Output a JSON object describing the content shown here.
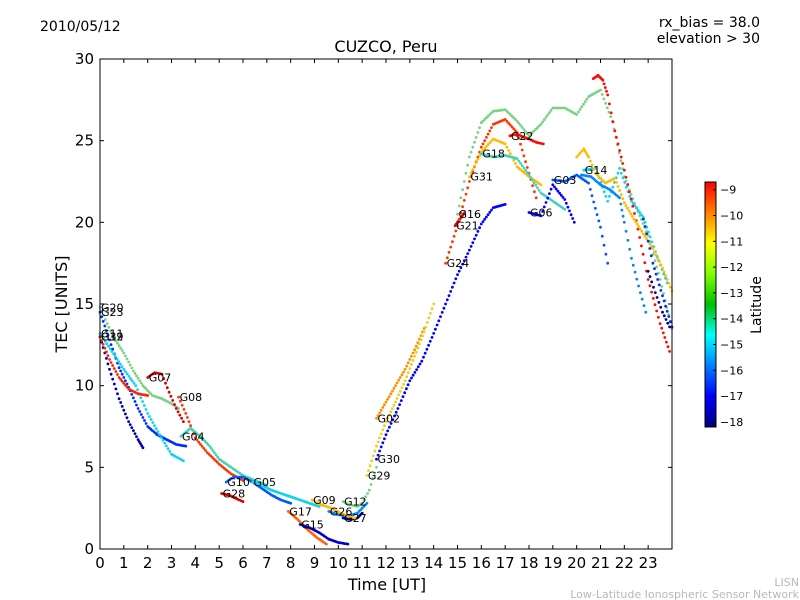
{
  "header": {
    "date": "2010/05/12",
    "rx_bias": "rx_bias = 38.0",
    "elevation": "elevation > 30"
  },
  "credit": {
    "line1": "LISN",
    "line2": "Low-Latitude Ionospheric Sensor Network"
  },
  "chart_data": {
    "type": "scatter",
    "title": "CUZCO, Peru",
    "xlabel": "Time [UT]",
    "ylabel": "TEC [UNITS]",
    "xlim": [
      0,
      24
    ],
    "ylim": [
      0,
      30
    ],
    "xticks": [
      "0",
      "1",
      "2",
      "3",
      "4",
      "5",
      "6",
      "7",
      "8",
      "9",
      "10",
      "11",
      "12",
      "13",
      "14",
      "15",
      "16",
      "17",
      "18",
      "19",
      "20",
      "21",
      "22",
      "23"
    ],
    "yticks": [
      "0",
      "5",
      "10",
      "15",
      "20",
      "25",
      "30"
    ],
    "grid": false,
    "colorbar": {
      "label": "Latitude",
      "min": -18.2,
      "max": -8.7,
      "ticks": [
        "−9",
        "−10",
        "−11",
        "−12",
        "−13",
        "−14",
        "−15",
        "−16",
        "−17",
        "−18"
      ],
      "tick_values": [
        -9,
        -10,
        -11,
        -12,
        -13,
        -14,
        -15,
        -16,
        -17,
        -18
      ]
    },
    "series": [
      {
        "name": "G20",
        "lat": -13.5,
        "x": [
          0,
          0.3,
          0.6,
          1.0,
          1.4,
          1.8,
          2.2,
          2.6,
          3.0,
          3.3
        ],
        "y": [
          14.8,
          13.8,
          12.9,
          12.0,
          10.9,
          10.0,
          9.4,
          9.2,
          8.9,
          8.6
        ]
      },
      {
        "name": "G23",
        "lat": -16.5,
        "x": [
          0,
          0.4,
          0.8,
          1.2,
          1.6,
          2.0,
          2.4,
          2.8,
          3.2,
          3.6
        ],
        "y": [
          14.5,
          12.8,
          11.1,
          9.9,
          8.6,
          7.5,
          7.0,
          6.7,
          6.4,
          6.3
        ]
      },
      {
        "name": "G19",
        "lat": -17.8,
        "x": [
          0,
          0.4,
          0.8,
          1.2,
          1.6,
          1.8
        ],
        "y": [
          13.0,
          11.0,
          9.2,
          7.8,
          6.7,
          6.2
        ]
      },
      {
        "name": "G11",
        "lat": -14.5,
        "x": [
          0,
          0.5,
          1.0,
          1.5,
          2.0,
          2.5,
          3.0,
          3.5
        ],
        "y": [
          13.2,
          12.1,
          11.0,
          10.0,
          8.3,
          7.0,
          5.8,
          5.4
        ]
      },
      {
        "name": "G32",
        "lat": -10.3,
        "x": [
          0,
          0.4,
          0.8,
          1.2,
          1.6,
          2.0
        ],
        "y": [
          13.0,
          11.6,
          10.5,
          9.8,
          9.5,
          9.4
        ]
      },
      {
        "name": "G07",
        "lat": -9.5,
        "x": [
          2.0,
          2.3,
          2.6,
          2.9,
          3.2,
          3.5
        ],
        "y": [
          10.5,
          10.8,
          10.7,
          9.6,
          8.6,
          7.8
        ]
      },
      {
        "name": "G08",
        "lat": -10.5,
        "x": [
          3.3,
          3.6,
          4.0,
          4.5,
          5.0,
          5.5,
          6.0
        ],
        "y": [
          9.3,
          8.3,
          6.8,
          5.9,
          5.2,
          4.6,
          4.2
        ]
      },
      {
        "name": "G04",
        "lat": -14.0,
        "x": [
          3.4,
          3.8,
          4.2,
          4.6,
          5.0,
          5.5,
          6.0,
          6.5,
          7.0
        ],
        "y": [
          6.9,
          7.4,
          6.9,
          6.3,
          5.5,
          5.0,
          4.5,
          4.2,
          3.9
        ]
      },
      {
        "name": "G10",
        "lat": -16.0,
        "x": [
          5.3,
          5.6,
          6.0,
          6.4,
          6.8,
          7.2,
          7.6,
          8.0
        ],
        "y": [
          4.1,
          4.4,
          4.4,
          4.1,
          3.7,
          3.3,
          3.0,
          2.8
        ]
      },
      {
        "name": "G28",
        "lat": -9.5,
        "x": [
          5.1,
          5.4,
          5.7,
          6.0
        ],
        "y": [
          3.4,
          3.3,
          3.1,
          2.9
        ]
      },
      {
        "name": "G05",
        "lat": -14.5,
        "x": [
          6.4,
          6.8,
          7.2,
          7.6,
          8.0,
          8.4,
          8.8,
          9.2
        ],
        "y": [
          4.1,
          3.9,
          3.6,
          3.4,
          3.2,
          3.0,
          2.8,
          2.6
        ]
      },
      {
        "name": "G17",
        "lat": -11.0,
        "x": [
          7.9,
          8.3,
          8.7,
          9.1,
          9.5
        ],
        "y": [
          2.3,
          1.8,
          1.2,
          0.7,
          0.3
        ]
      },
      {
        "name": "G15",
        "lat": -17.5,
        "x": [
          8.4,
          8.8,
          9.2,
          9.6,
          10.0,
          10.4
        ],
        "y": [
          1.5,
          1.3,
          1.0,
          0.6,
          0.4,
          0.3
        ]
      },
      {
        "name": "G12",
        "lat": -13.5,
        "x": [
          10.2,
          10.5,
          10.8,
          11.0,
          11.3,
          11.6
        ],
        "y": [
          2.9,
          2.7,
          2.6,
          2.8,
          3.6,
          5.0
        ]
      },
      {
        "name": "G26",
        "lat": -15.5,
        "x": [
          9.6,
          10.0,
          10.4,
          10.8,
          11.2
        ],
        "y": [
          2.3,
          2.1,
          2.0,
          2.2,
          2.8
        ]
      },
      {
        "name": "G27",
        "lat": -18.0,
        "x": [
          10.2,
          10.5,
          10.8,
          11.0
        ],
        "y": [
          1.9,
          1.8,
          1.9,
          2.2
        ]
      },
      {
        "name": "G09",
        "lat": -12.0,
        "x": [
          8.9,
          9.3,
          9.7,
          10.1,
          10.4,
          10.7
        ],
        "y": [
          3.0,
          2.7,
          2.5,
          2.2,
          2.0,
          1.9
        ]
      },
      {
        "name": "G02",
        "lat": -11.5,
        "x": [
          11.6,
          12.0,
          12.4,
          12.8,
          13.2,
          13.6
        ],
        "y": [
          8.0,
          9.0,
          10.0,
          11.0,
          12.2,
          13.5
        ]
      },
      {
        "name": "G29",
        "lat": -12.5,
        "x": [
          11.2,
          11.6,
          12.0,
          12.4,
          12.8,
          13.2,
          13.6,
          14.0
        ],
        "y": [
          4.5,
          6.3,
          7.8,
          9.0,
          10.3,
          11.8,
          13.3,
          15.0
        ]
      },
      {
        "name": "G30",
        "lat": -17.0,
        "x": [
          11.6,
          12.0,
          12.5,
          13.0,
          13.5,
          14.0,
          14.5,
          15.0,
          15.5,
          16.0,
          16.5,
          17.0
        ],
        "y": [
          5.5,
          7.0,
          8.6,
          10.3,
          11.5,
          13.2,
          15.0,
          16.8,
          18.3,
          19.9,
          20.9,
          21.1
        ]
      },
      {
        "name": "G21",
        "lat": -9.5,
        "x": [
          14.9,
          15.1,
          15.3
        ],
        "y": [
          19.8,
          20.2,
          20.6
        ]
      },
      {
        "name": "G24",
        "lat": -10.5,
        "x": [
          14.5,
          15.0,
          15.5,
          16.0,
          16.5,
          17.0,
          17.5,
          18.0,
          18.3
        ],
        "y": [
          17.5,
          19.8,
          22.5,
          24.6,
          26.0,
          26.3,
          25.5,
          23.0,
          21.5
        ]
      },
      {
        "name": "G31",
        "lat": -12.0,
        "x": [
          15.5,
          16.0,
          16.5,
          17.0,
          17.5,
          18.0,
          18.5
        ],
        "y": [
          22.8,
          24.3,
          25.1,
          24.8,
          23.4,
          22.8,
          22.3
        ]
      },
      {
        "name": "G18",
        "lat": -14.0,
        "x": [
          16.0,
          16.5,
          17.0,
          17.5,
          18.0,
          18.5,
          19.0,
          19.5
        ],
        "y": [
          24.2,
          24.0,
          24.1,
          23.9,
          22.9,
          21.8,
          21.3,
          20.8
        ]
      },
      {
        "name": "G22",
        "lat": -10.0,
        "x": [
          17.2,
          17.5,
          17.8,
          18.0,
          18.3,
          18.6
        ],
        "y": [
          25.3,
          25.4,
          25.2,
          25.1,
          24.9,
          24.8
        ]
      },
      {
        "name": "G16",
        "lat": -13.5,
        "x": [
          15.0,
          15.5,
          16.0,
          16.5,
          17.0,
          17.5,
          18.0,
          18.5,
          19.0,
          19.5,
          20.0,
          20.5,
          21.0,
          21.5,
          22.0,
          22.5,
          23.0,
          23.5,
          24.0
        ],
        "y": [
          20.5,
          24.0,
          26.1,
          26.8,
          26.9,
          26.2,
          25.3,
          26.0,
          27.0,
          27.0,
          26.6,
          27.7,
          28.1,
          26.2,
          22.8,
          20.9,
          19.2,
          16.5,
          13.5
        ]
      },
      {
        "name": "G06",
        "lat": -17.0,
        "x": [
          18.0,
          18.5,
          19.0,
          19.5,
          19.9
        ],
        "y": [
          20.6,
          20.4,
          22.3,
          21.4,
          20.0
        ]
      },
      {
        "name": "G03",
        "lat": -16.0,
        "x": [
          19.0,
          19.5,
          20.0,
          20.5,
          21.0,
          21.3
        ],
        "y": [
          22.6,
          22.5,
          22.9,
          22.4,
          19.7,
          17.5
        ]
      },
      {
        "name": "G14",
        "lat": -14.5,
        "x": [
          20.3,
          20.8,
          21.3,
          21.8,
          22.3,
          22.8,
          23.3,
          23.8
        ],
        "y": [
          23.2,
          23.3,
          21.3,
          23.3,
          21.3,
          20.3,
          18.2,
          16.3
        ]
      },
      {
        "name": "",
        "lat": -10.0,
        "x": [
          20.7,
          20.9,
          21.1,
          21.3,
          21.6,
          22.0,
          22.5,
          23.0,
          23.5,
          23.9
        ],
        "y": [
          28.8,
          29.0,
          28.7,
          27.8,
          25.6,
          23.2,
          20.1,
          16.5,
          13.8,
          12.1
        ]
      },
      {
        "name": "",
        "lat": -12.0,
        "x": [
          20.0,
          20.3,
          20.5,
          20.8,
          21.2,
          21.6,
          22.0,
          22.4,
          22.8,
          23.2,
          23.6,
          24.0
        ],
        "y": [
          24.0,
          24.5,
          24.0,
          23.0,
          22.4,
          22.7,
          21.2,
          20.2,
          19.3,
          18.4,
          17.2,
          15.8
        ]
      },
      {
        "name": "",
        "lat": -15.5,
        "x": [
          20.2,
          20.6,
          21.0,
          21.4,
          21.8,
          22.0,
          22.3,
          22.6,
          22.9
        ],
        "y": [
          22.9,
          22.8,
          22.3,
          22.0,
          21.5,
          20.0,
          17.8,
          16.1,
          14.5
        ]
      },
      {
        "name": "",
        "lat": -16.5,
        "x": [
          22.8,
          23.2,
          23.6,
          24.0
        ],
        "y": [
          20.2,
          17.5,
          15.5,
          13.6
        ]
      },
      {
        "name": "",
        "lat": -18.0,
        "x": [
          23.0,
          23.3,
          23.6,
          23.9
        ],
        "y": [
          17.0,
          15.7,
          14.5,
          13.6
        ]
      }
    ]
  }
}
